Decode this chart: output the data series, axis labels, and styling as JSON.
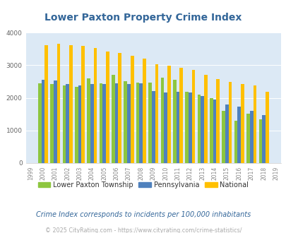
{
  "title": "Lower Paxton Property Crime Index",
  "title_color": "#336699",
  "years": [
    1999,
    2000,
    2001,
    2002,
    2003,
    2004,
    2005,
    2006,
    2007,
    2008,
    2009,
    2010,
    2011,
    2012,
    2013,
    2014,
    2015,
    2016,
    2017,
    2018,
    2019
  ],
  "lower_paxton": [
    null,
    2450,
    2430,
    2380,
    2330,
    2600,
    2440,
    2700,
    2500,
    2460,
    2460,
    2620,
    2550,
    2190,
    2100,
    1990,
    1600,
    1290,
    1510,
    1340,
    null
  ],
  "pennsylvania": [
    null,
    2560,
    2540,
    2430,
    2390,
    2430,
    2420,
    2450,
    2430,
    2450,
    2200,
    2160,
    2190,
    2160,
    2060,
    1950,
    1790,
    1730,
    1610,
    1480,
    null
  ],
  "national": [
    null,
    3610,
    3650,
    3610,
    3590,
    3520,
    3430,
    3380,
    3290,
    3210,
    3020,
    2980,
    2920,
    2850,
    2710,
    2570,
    2480,
    2420,
    2390,
    2190,
    null
  ],
  "bar_color_lpt": "#8dc63f",
  "bar_color_pa": "#4f81bd",
  "bar_color_nat": "#ffc000",
  "plot_bg": "#dce9f5",
  "ylim": [
    0,
    4000
  ],
  "yticks": [
    0,
    1000,
    2000,
    3000,
    4000
  ],
  "legend_labels": [
    "Lower Paxton Township",
    "Pennsylvania",
    "National"
  ],
  "footnote1": "Crime Index corresponds to incidents per 100,000 inhabitants",
  "footnote2": "© 2025 CityRating.com - https://www.cityrating.com/crime-statistics/",
  "footnote1_color": "#336699",
  "footnote2_color": "#aaaaaa"
}
